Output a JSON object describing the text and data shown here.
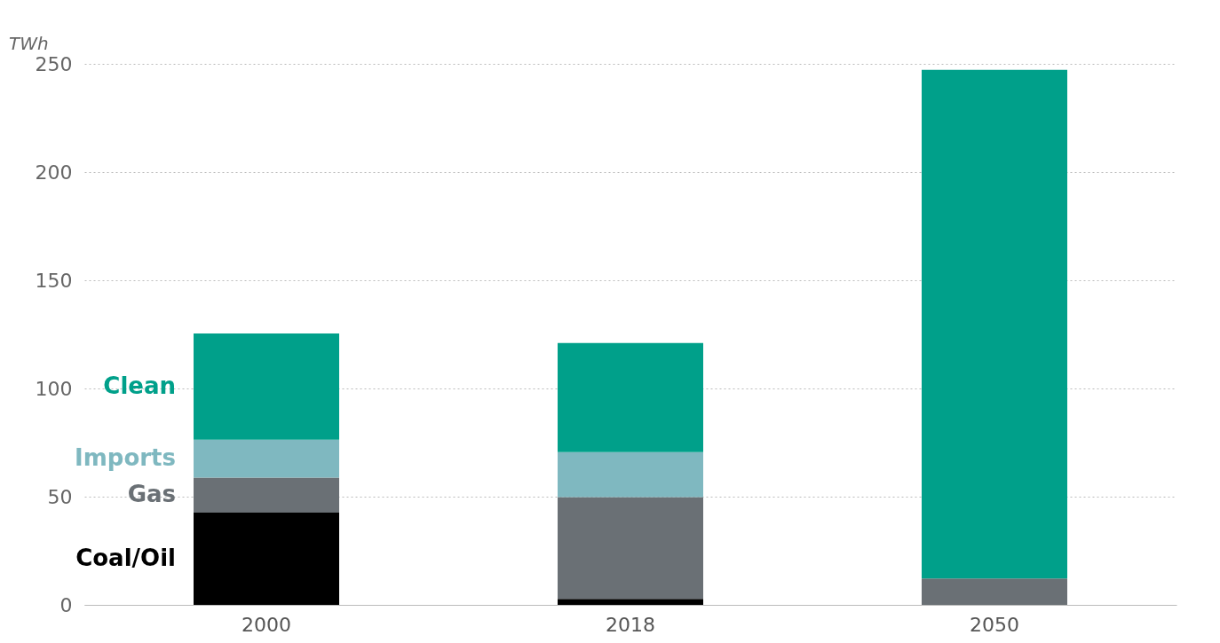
{
  "chart_data": {
    "type": "bar",
    "stacked": true,
    "ylabel": "TWh",
    "categories": [
      "2000",
      "2018",
      "2050"
    ],
    "series": [
      {
        "name": "Coal/Oil",
        "color": "#000000",
        "values": [
          42.6,
          2.8,
          0
        ]
      },
      {
        "name": "Gas",
        "color": "#6a7075",
        "values": [
          16.2,
          47,
          12.2
        ]
      },
      {
        "name": "Imports",
        "color": "#7fb8c0",
        "values": [
          17.5,
          20.8,
          0
        ]
      },
      {
        "name": "Clean",
        "color": "#00a08a",
        "values": [
          49.1,
          50.4,
          235
        ]
      }
    ],
    "ylim": [
      0,
      250
    ],
    "yticks": [
      0,
      50,
      100,
      150,
      200,
      250
    ],
    "grid": "y",
    "legend": false
  }
}
